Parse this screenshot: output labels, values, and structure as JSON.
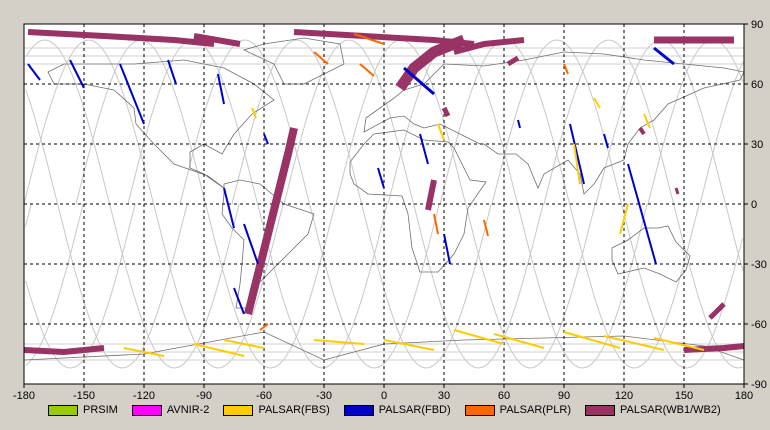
{
  "chart_data": {
    "type": "map",
    "title": "",
    "xaxis": {
      "ticks": [
        "-180",
        "-150",
        "-120",
        "-90",
        "-60",
        "-30",
        "0",
        "30",
        "60",
        "90",
        "120",
        "150",
        "180"
      ],
      "range": [
        -180,
        180
      ]
    },
    "yaxis": {
      "ticks": [
        "90",
        "60",
        "30",
        "0",
        "-30",
        "-60",
        "-90"
      ],
      "range": [
        -90,
        90
      ],
      "position": "right"
    },
    "grid": true,
    "legend_position": "bottom",
    "legend": [
      {
        "name": "PRSIM",
        "color": "#99cc00"
      },
      {
        "name": "AVNIR-2",
        "color": "#ff00ff"
      },
      {
        "name": "PALSAR(FBS)",
        "color": "#ffcc00"
      },
      {
        "name": "PALSAR(FBD)",
        "color": "#0000cc"
      },
      {
        "name": "PALSAR(PLR)",
        "color": "#ff6600"
      },
      {
        "name": "PALSAR(WB1/WB2)",
        "color": "#993366"
      }
    ],
    "swaths": [
      {
        "type": "PALSAR(WB1/WB2)",
        "points": [
          [
            -178,
            86
          ],
          [
            -140,
            84
          ],
          [
            -105,
            82
          ],
          [
            -85,
            80
          ]
        ],
        "width": 6
      },
      {
        "type": "PALSAR(WB1/WB2)",
        "points": [
          [
            -95,
            84
          ],
          [
            -72,
            80
          ]
        ],
        "width": 6
      },
      {
        "type": "PALSAR(WB1/WB2)",
        "points": [
          [
            -45,
            86
          ],
          [
            -10,
            84
          ],
          [
            25,
            82
          ],
          [
            45,
            80
          ]
        ],
        "width": 6
      },
      {
        "type": "PALSAR(WB1/WB2)",
        "points": [
          [
            8,
            58
          ],
          [
            15,
            68
          ],
          [
            25,
            76
          ],
          [
            40,
            82
          ]
        ],
        "width": 11
      },
      {
        "type": "PALSAR(WB1/WB2)",
        "points": [
          [
            35,
            76
          ],
          [
            50,
            80
          ],
          [
            70,
            82
          ]
        ],
        "width": 6
      },
      {
        "type": "PALSAR(WB1/WB2)",
        "points": [
          [
            135,
            82
          ],
          [
            160,
            82
          ],
          [
            175,
            82
          ]
        ],
        "width": 7
      },
      {
        "type": "PALSAR(WB1/WB2)",
        "points": [
          [
            -45,
            38
          ],
          [
            -48,
            25
          ],
          [
            -53,
            5
          ],
          [
            -58,
            -15
          ],
          [
            -63,
            -35
          ],
          [
            -68,
            -55
          ]
        ],
        "width": 8
      },
      {
        "type": "PALSAR(WB1/WB2)",
        "points": [
          [
            25,
            12
          ],
          [
            22,
            -3
          ]
        ],
        "width": 6
      },
      {
        "type": "PALSAR(WB1/WB2)",
        "points": [
          [
            -180,
            -73
          ],
          [
            -160,
            -74
          ],
          [
            -140,
            -72
          ]
        ],
        "width": 6
      },
      {
        "type": "PALSAR(WB1/WB2)",
        "points": [
          [
            150,
            -73
          ],
          [
            170,
            -72
          ],
          [
            180,
            -71
          ]
        ],
        "width": 6
      },
      {
        "type": "PALSAR(WB1/WB2)",
        "points": [
          [
            170,
            -50
          ],
          [
            163,
            -57
          ]
        ],
        "width": 5
      },
      {
        "type": "PALSAR(WB1/WB2)",
        "points": [
          [
            62,
            70
          ],
          [
            67,
            73
          ]
        ],
        "width": 5
      },
      {
        "type": "PALSAR(WB1/WB2)",
        "points": [
          [
            30,
            48
          ],
          [
            32,
            44
          ]
        ],
        "width": 5
      },
      {
        "type": "PALSAR(WB1/WB2)",
        "points": [
          [
            128,
            38
          ],
          [
            130,
            35
          ]
        ],
        "width": 4
      },
      {
        "type": "PALSAR(WB1/WB2)",
        "points": [
          [
            146,
            8
          ],
          [
            147,
            5
          ]
        ],
        "width": 3
      },
      {
        "type": "PALSAR(FBD)",
        "points": [
          [
            -178,
            70
          ],
          [
            -172,
            62
          ]
        ],
        "width": 2
      },
      {
        "type": "PALSAR(FBD)",
        "points": [
          [
            -157,
            72
          ],
          [
            -150,
            58
          ]
        ],
        "width": 2
      },
      {
        "type": "PALSAR(FBD)",
        "points": [
          [
            -132,
            70
          ],
          [
            -120,
            40
          ]
        ],
        "width": 2
      },
      {
        "type": "PALSAR(FBD)",
        "points": [
          [
            -108,
            72
          ],
          [
            -104,
            60
          ]
        ],
        "width": 2
      },
      {
        "type": "PALSAR(FBD)",
        "points": [
          [
            -83,
            65
          ],
          [
            -80,
            50
          ]
        ],
        "width": 2
      },
      {
        "type": "PALSAR(FBD)",
        "points": [
          [
            -60,
            35
          ],
          [
            -58,
            30
          ]
        ],
        "width": 2
      },
      {
        "type": "PALSAR(FBD)",
        "points": [
          [
            -80,
            8
          ],
          [
            -75,
            -12
          ]
        ],
        "width": 2
      },
      {
        "type": "PALSAR(FBD)",
        "points": [
          [
            -70,
            -10
          ],
          [
            -63,
            -30
          ]
        ],
        "width": 2
      },
      {
        "type": "PALSAR(FBD)",
        "points": [
          [
            -75,
            -42
          ],
          [
            -70,
            -55
          ]
        ],
        "width": 2
      },
      {
        "type": "PALSAR(FBD)",
        "points": [
          [
            10,
            68
          ],
          [
            25,
            55
          ]
        ],
        "width": 3
      },
      {
        "type": "PALSAR(FBD)",
        "points": [
          [
            18,
            35
          ],
          [
            22,
            20
          ]
        ],
        "width": 2
      },
      {
        "type": "PALSAR(FBD)",
        "points": [
          [
            -3,
            18
          ],
          [
            0,
            8
          ]
        ],
        "width": 2
      },
      {
        "type": "PALSAR(FBD)",
        "points": [
          [
            30,
            -15
          ],
          [
            33,
            -30
          ]
        ],
        "width": 2
      },
      {
        "type": "PALSAR(FBD)",
        "points": [
          [
            135,
            78
          ],
          [
            145,
            70
          ]
        ],
        "width": 3
      },
      {
        "type": "PALSAR(FBD)",
        "points": [
          [
            93,
            40
          ],
          [
            100,
            10
          ]
        ],
        "width": 2
      },
      {
        "type": "PALSAR(FBD)",
        "points": [
          [
            122,
            20
          ],
          [
            136,
            -30
          ]
        ],
        "width": 2
      },
      {
        "type": "PALSAR(FBD)",
        "points": [
          [
            110,
            35
          ],
          [
            112,
            28
          ]
        ],
        "width": 2
      },
      {
        "type": "PALSAR(FBD)",
        "points": [
          [
            67,
            42
          ],
          [
            68,
            38
          ]
        ],
        "width": 2
      },
      {
        "type": "PALSAR(FBS)",
        "points": [
          [
            -66,
            48
          ],
          [
            -64,
            43
          ]
        ],
        "width": 2
      },
      {
        "type": "PALSAR(FBS)",
        "points": [
          [
            95,
            30
          ],
          [
            98,
            10
          ]
        ],
        "width": 2
      },
      {
        "type": "PALSAR(FBS)",
        "points": [
          [
            122,
            0
          ],
          [
            118,
            -15
          ]
        ],
        "width": 2
      },
      {
        "type": "PALSAR(FBS)",
        "points": [
          [
            27,
            40
          ],
          [
            30,
            32
          ]
        ],
        "width": 2
      },
      {
        "type": "PALSAR(FBS)",
        "points": [
          [
            105,
            53
          ],
          [
            108,
            48
          ]
        ],
        "width": 2
      },
      {
        "type": "PALSAR(FBS)",
        "points": [
          [
            130,
            45
          ],
          [
            133,
            38
          ]
        ],
        "width": 2
      },
      {
        "type": "PALSAR(FBS)",
        "points": [
          [
            -130,
            -72
          ],
          [
            -110,
            -76
          ]
        ],
        "width": 2
      },
      {
        "type": "PALSAR(FBS)",
        "points": [
          [
            -95,
            -70
          ],
          [
            -70,
            -76
          ]
        ],
        "width": 2
      },
      {
        "type": "PALSAR(FBS)",
        "points": [
          [
            -80,
            -68
          ],
          [
            -60,
            -72
          ]
        ],
        "width": 2
      },
      {
        "type": "PALSAR(FBS)",
        "points": [
          [
            0,
            -68
          ],
          [
            25,
            -73
          ]
        ],
        "width": 2
      },
      {
        "type": "PALSAR(FBS)",
        "points": [
          [
            55,
            -65
          ],
          [
            80,
            -72
          ]
        ],
        "width": 2
      },
      {
        "type": "PALSAR(FBS)",
        "points": [
          [
            35,
            -63
          ],
          [
            60,
            -70
          ]
        ],
        "width": 2
      },
      {
        "type": "PALSAR(FBS)",
        "points": [
          [
            90,
            -64
          ],
          [
            118,
            -72
          ]
        ],
        "width": 2
      },
      {
        "type": "PALSAR(FBS)",
        "points": [
          [
            110,
            -66
          ],
          [
            140,
            -73
          ]
        ],
        "width": 2
      },
      {
        "type": "PALSAR(FBS)",
        "points": [
          [
            135,
            -67
          ],
          [
            160,
            -73
          ]
        ],
        "width": 2
      },
      {
        "type": "PALSAR(FBS)",
        "points": [
          [
            -35,
            -68
          ],
          [
            -10,
            -70
          ]
        ],
        "width": 2
      },
      {
        "type": "PALSAR(PLR)",
        "points": [
          [
            -15,
            85
          ],
          [
            0,
            80
          ]
        ],
        "width": 2
      },
      {
        "type": "PALSAR(PLR)",
        "points": [
          [
            -12,
            70
          ],
          [
            -5,
            64
          ]
        ],
        "width": 2
      },
      {
        "type": "PALSAR(PLR)",
        "points": [
          [
            -35,
            76
          ],
          [
            -28,
            70
          ]
        ],
        "width": 2
      },
      {
        "type": "PALSAR(PLR)",
        "points": [
          [
            25,
            -5
          ],
          [
            27,
            -15
          ]
        ],
        "width": 2
      },
      {
        "type": "PALSAR(PLR)",
        "points": [
          [
            50,
            -8
          ],
          [
            52,
            -16
          ]
        ],
        "width": 2
      },
      {
        "type": "PALSAR(PLR)",
        "points": [
          [
            90,
            70
          ],
          [
            92,
            65
          ]
        ],
        "width": 2
      },
      {
        "type": "PALSAR(PLR)",
        "points": [
          [
            -58,
            -60
          ],
          [
            -62,
            -63
          ]
        ],
        "width": 2
      }
    ]
  }
}
